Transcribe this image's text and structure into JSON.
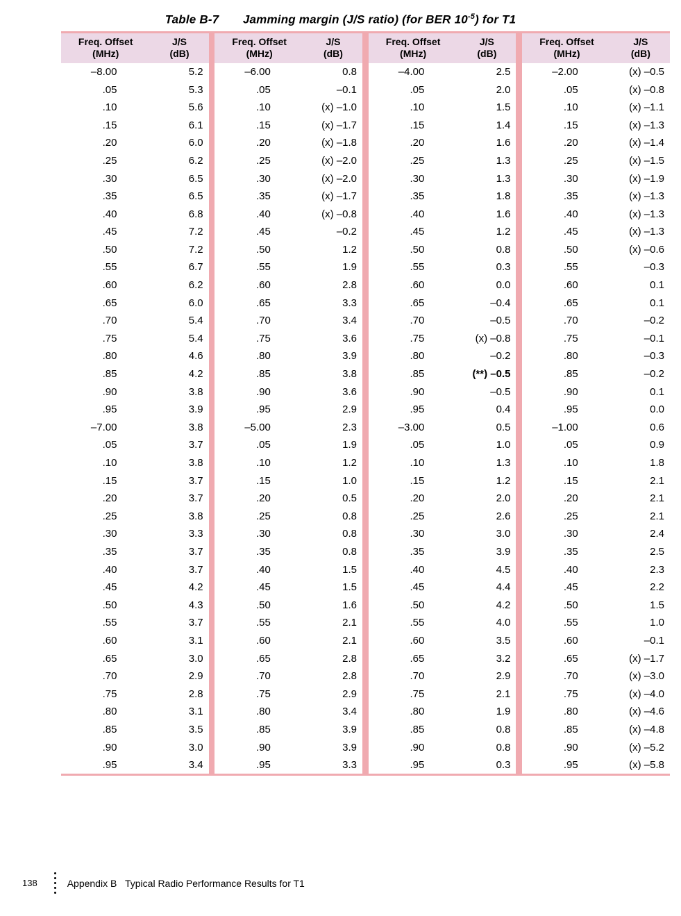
{
  "title_prefix": "Table B-7",
  "title_gap": "       ",
  "title_main_a": "Jamming margin (J/S ratio) (for BER 10",
  "title_sup": "-5",
  "title_main_b": ") for T1",
  "headers": {
    "freq_l1": "Freq. Offset",
    "freq_l2": "(MHz)",
    "js_l1": "J/S",
    "js_l2": "(dB)"
  },
  "colors": {
    "header_bg": "#ecd8e6",
    "separator": "#f0aab0",
    "text": "#000000",
    "background": "#ffffff"
  },
  "footer": {
    "page": "138",
    "text": "Appendix B   Typical Radio Performance Results for T1"
  },
  "columns": [
    [
      {
        "f": "–8.00",
        "j": "5.2"
      },
      {
        "f": ".05",
        "j": "5.3"
      },
      {
        "f": ".10",
        "j": "5.6"
      },
      {
        "f": ".15",
        "j": "6.1"
      },
      {
        "f": ".20",
        "j": "6.0"
      },
      {
        "f": ".25",
        "j": "6.2"
      },
      {
        "f": ".30",
        "j": "6.5"
      },
      {
        "f": ".35",
        "j": "6.5"
      },
      {
        "f": ".40",
        "j": "6.8"
      },
      {
        "f": ".45",
        "j": "7.2"
      },
      {
        "f": ".50",
        "j": "7.2"
      },
      {
        "f": ".55",
        "j": "6.7"
      },
      {
        "f": ".60",
        "j": "6.2"
      },
      {
        "f": ".65",
        "j": "6.0"
      },
      {
        "f": ".70",
        "j": "5.4"
      },
      {
        "f": ".75",
        "j": "5.4"
      },
      {
        "f": ".80",
        "j": "4.6"
      },
      {
        "f": ".85",
        "j": "4.2"
      },
      {
        "f": ".90",
        "j": "3.8"
      },
      {
        "f": ".95",
        "j": "3.9"
      },
      {
        "f": "–7.00",
        "j": "3.8"
      },
      {
        "f": ".05",
        "j": "3.7"
      },
      {
        "f": ".10",
        "j": "3.8"
      },
      {
        "f": ".15",
        "j": "3.7"
      },
      {
        "f": ".20",
        "j": "3.7"
      },
      {
        "f": ".25",
        "j": "3.8"
      },
      {
        "f": ".30",
        "j": "3.3"
      },
      {
        "f": ".35",
        "j": "3.7"
      },
      {
        "f": ".40",
        "j": "3.7"
      },
      {
        "f": ".45",
        "j": "4.2"
      },
      {
        "f": ".50",
        "j": "4.3"
      },
      {
        "f": ".55",
        "j": "3.7"
      },
      {
        "f": ".60",
        "j": "3.1"
      },
      {
        "f": ".65",
        "j": "3.0"
      },
      {
        "f": ".70",
        "j": "2.9"
      },
      {
        "f": ".75",
        "j": "2.8"
      },
      {
        "f": ".80",
        "j": "3.1"
      },
      {
        "f": ".85",
        "j": "3.5"
      },
      {
        "f": ".90",
        "j": "3.0"
      },
      {
        "f": ".95",
        "j": "3.4"
      }
    ],
    [
      {
        "f": "–6.00",
        "j": "0.8"
      },
      {
        "f": ".05",
        "j": "–0.1"
      },
      {
        "f": ".10",
        "j": "(x) –1.0"
      },
      {
        "f": ".15",
        "j": "(x) –1.7"
      },
      {
        "f": ".20",
        "j": "(x) –1.8"
      },
      {
        "f": ".25",
        "j": "(x) –2.0"
      },
      {
        "f": ".30",
        "j": "(x) –2.0"
      },
      {
        "f": ".35",
        "j": "(x) –1.7"
      },
      {
        "f": ".40",
        "j": "(x) –0.8"
      },
      {
        "f": ".45",
        "j": "–0.2"
      },
      {
        "f": ".50",
        "j": "1.2"
      },
      {
        "f": ".55",
        "j": "1.9"
      },
      {
        "f": ".60",
        "j": "2.8"
      },
      {
        "f": ".65",
        "j": "3.3"
      },
      {
        "f": ".70",
        "j": "3.4"
      },
      {
        "f": ".75",
        "j": "3.6"
      },
      {
        "f": ".80",
        "j": "3.9"
      },
      {
        "f": ".85",
        "j": "3.8"
      },
      {
        "f": ".90",
        "j": "3.6"
      },
      {
        "f": ".95",
        "j": "2.9"
      },
      {
        "f": "–5.00",
        "j": "2.3"
      },
      {
        "f": ".05",
        "j": "1.9"
      },
      {
        "f": ".10",
        "j": "1.2"
      },
      {
        "f": ".15",
        "j": "1.0"
      },
      {
        "f": ".20",
        "j": "0.5"
      },
      {
        "f": ".25",
        "j": "0.8"
      },
      {
        "f": ".30",
        "j": "0.8"
      },
      {
        "f": ".35",
        "j": "0.8"
      },
      {
        "f": ".40",
        "j": "1.5"
      },
      {
        "f": ".45",
        "j": "1.5"
      },
      {
        "f": ".50",
        "j": "1.6"
      },
      {
        "f": ".55",
        "j": "2.1"
      },
      {
        "f": ".60",
        "j": "2.1"
      },
      {
        "f": ".65",
        "j": "2.8"
      },
      {
        "f": ".70",
        "j": "2.8"
      },
      {
        "f": ".75",
        "j": "2.9"
      },
      {
        "f": ".80",
        "j": "3.4"
      },
      {
        "f": ".85",
        "j": "3.9"
      },
      {
        "f": ".90",
        "j": "3.9"
      },
      {
        "f": ".95",
        "j": "3.3"
      }
    ],
    [
      {
        "f": "–4.00",
        "j": "2.5"
      },
      {
        "f": ".05",
        "j": "2.0"
      },
      {
        "f": ".10",
        "j": "1.5"
      },
      {
        "f": ".15",
        "j": "1.4"
      },
      {
        "f": ".20",
        "j": "1.6"
      },
      {
        "f": ".25",
        "j": "1.3"
      },
      {
        "f": ".30",
        "j": "1.3"
      },
      {
        "f": ".35",
        "j": "1.8"
      },
      {
        "f": ".40",
        "j": "1.6"
      },
      {
        "f": ".45",
        "j": "1.2"
      },
      {
        "f": ".50",
        "j": "0.8"
      },
      {
        "f": ".55",
        "j": "0.3"
      },
      {
        "f": ".60",
        "j": "0.0"
      },
      {
        "f": ".65",
        "j": "–0.4"
      },
      {
        "f": ".70",
        "j": "–0.5"
      },
      {
        "f": ".75",
        "j": "(x) –0.8"
      },
      {
        "f": ".80",
        "j": "–0.2"
      },
      {
        "f": ".85",
        "j": "(**) –0.5",
        "bold": true
      },
      {
        "f": ".90",
        "j": "–0.5"
      },
      {
        "f": ".95",
        "j": "0.4"
      },
      {
        "f": "–3.00",
        "j": "0.5"
      },
      {
        "f": ".05",
        "j": "1.0"
      },
      {
        "f": ".10",
        "j": "1.3"
      },
      {
        "f": ".15",
        "j": "1.2"
      },
      {
        "f": ".20",
        "j": "2.0"
      },
      {
        "f": ".25",
        "j": "2.6"
      },
      {
        "f": ".30",
        "j": "3.0"
      },
      {
        "f": ".35",
        "j": "3.9"
      },
      {
        "f": ".40",
        "j": "4.5"
      },
      {
        "f": ".45",
        "j": "4.4"
      },
      {
        "f": ".50",
        "j": "4.2"
      },
      {
        "f": ".55",
        "j": "4.0"
      },
      {
        "f": ".60",
        "j": "3.5"
      },
      {
        "f": ".65",
        "j": "3.2"
      },
      {
        "f": ".70",
        "j": "2.9"
      },
      {
        "f": ".75",
        "j": "2.1"
      },
      {
        "f": ".80",
        "j": "1.9"
      },
      {
        "f": ".85",
        "j": "0.8"
      },
      {
        "f": ".90",
        "j": "0.8"
      },
      {
        "f": ".95",
        "j": "0.3"
      }
    ],
    [
      {
        "f": "–2.00",
        "j": "(x) –0.5"
      },
      {
        "f": ".05",
        "j": "(x) –0.8"
      },
      {
        "f": ".10",
        "j": "(x) –1.1"
      },
      {
        "f": ".15",
        "j": "(x) –1.3"
      },
      {
        "f": ".20",
        "j": "(x) –1.4"
      },
      {
        "f": ".25",
        "j": "(x) –1.5"
      },
      {
        "f": ".30",
        "j": "(x) –1.9"
      },
      {
        "f": ".35",
        "j": "(x) –1.3"
      },
      {
        "f": ".40",
        "j": "(x) –1.3"
      },
      {
        "f": ".45",
        "j": "(x) –1.3"
      },
      {
        "f": ".50",
        "j": "(x) –0.6"
      },
      {
        "f": ".55",
        "j": "–0.3"
      },
      {
        "f": ".60",
        "j": "0.1"
      },
      {
        "f": ".65",
        "j": "0.1"
      },
      {
        "f": ".70",
        "j": "–0.2"
      },
      {
        "f": ".75",
        "j": "–0.1"
      },
      {
        "f": ".80",
        "j": "–0.3"
      },
      {
        "f": ".85",
        "j": "–0.2"
      },
      {
        "f": ".90",
        "j": "0.1"
      },
      {
        "f": ".95",
        "j": "0.0"
      },
      {
        "f": "–1.00",
        "j": "0.6"
      },
      {
        "f": ".05",
        "j": "0.9"
      },
      {
        "f": ".10",
        "j": "1.8"
      },
      {
        "f": ".15",
        "j": "2.1"
      },
      {
        "f": ".20",
        "j": "2.1"
      },
      {
        "f": ".25",
        "j": "2.1"
      },
      {
        "f": ".30",
        "j": "2.4"
      },
      {
        "f": ".35",
        "j": "2.5"
      },
      {
        "f": ".40",
        "j": "2.3"
      },
      {
        "f": ".45",
        "j": "2.2"
      },
      {
        "f": ".50",
        "j": "1.5"
      },
      {
        "f": ".55",
        "j": "1.0"
      },
      {
        "f": ".60",
        "j": "–0.1"
      },
      {
        "f": ".65",
        "j": "(x) –1.7"
      },
      {
        "f": ".70",
        "j": "(x) –3.0"
      },
      {
        "f": ".75",
        "j": "(x) –4.0"
      },
      {
        "f": ".80",
        "j": "(x) –4.6"
      },
      {
        "f": ".85",
        "j": "(x) –4.8"
      },
      {
        "f": ".90",
        "j": "(x) –5.2"
      },
      {
        "f": ".95",
        "j": "(x) –5.8"
      }
    ]
  ]
}
